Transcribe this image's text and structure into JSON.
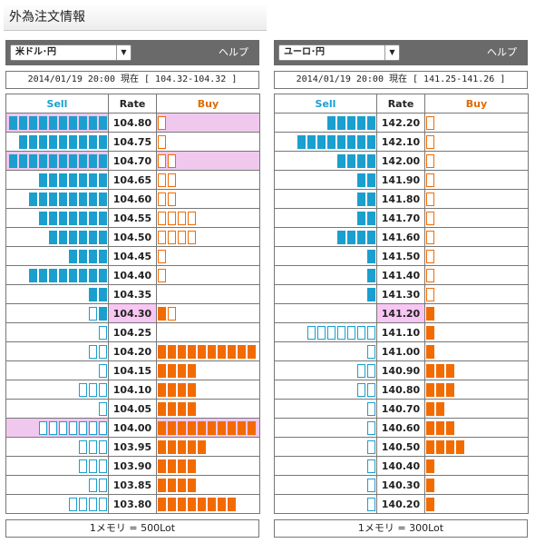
{
  "page_title": "外為注文情報",
  "colors": {
    "sell": "#1a9fcf",
    "buy": "#f26b00",
    "current_rate_bg": "#f7c6f2"
  },
  "icons": {
    "select_arrow": "chevron-down-icon"
  },
  "panels": [
    {
      "pair": "米ドル･円",
      "help": "ヘルプ",
      "info": "2014/01/19  20:00 現在 [ 104.32-104.32 ]",
      "headers": {
        "sell": "Sell",
        "rate": "Rate",
        "buy": "Buy"
      },
      "current_rate": "104.30",
      "unit_note": "1メモリ = 500Lot",
      "rows": [
        {
          "rate": "104.80",
          "sell": 10,
          "sell_style": "filled",
          "buy": 1,
          "buy_style": "outline",
          "highlight": true
        },
        {
          "rate": "104.75",
          "sell": 9,
          "sell_style": "filled",
          "buy": 1,
          "buy_style": "outline"
        },
        {
          "rate": "104.70",
          "sell": 10,
          "sell_style": "filled",
          "buy": 2,
          "buy_style": "outline",
          "highlight": true
        },
        {
          "rate": "104.65",
          "sell": 7,
          "sell_style": "filled",
          "buy": 2,
          "buy_style": "outline"
        },
        {
          "rate": "104.60",
          "sell": 8,
          "sell_style": "filled",
          "buy": 2,
          "buy_style": "outline"
        },
        {
          "rate": "104.55",
          "sell": 7,
          "sell_style": "filled",
          "buy": 4,
          "buy_style": "outline"
        },
        {
          "rate": "104.50",
          "sell": 6,
          "sell_style": "filled",
          "buy": 4,
          "buy_style": "outline"
        },
        {
          "rate": "104.45",
          "sell": 4,
          "sell_style": "filled",
          "buy": 1,
          "buy_style": "outline"
        },
        {
          "rate": "104.40",
          "sell": 8,
          "sell_style": "filled",
          "buy": 1,
          "buy_style": "outline"
        },
        {
          "rate": "104.35",
          "sell": 2,
          "sell_style": "filled",
          "buy": 0,
          "buy_style": "outline"
        },
        {
          "rate": "104.30",
          "sell": 2,
          "sell_style": "mixed",
          "buy": 2,
          "buy_style": "mixed",
          "current": true
        },
        {
          "rate": "104.25",
          "sell": 1,
          "sell_style": "outline",
          "buy": 0,
          "buy_style": "filled"
        },
        {
          "rate": "104.20",
          "sell": 2,
          "sell_style": "outline",
          "buy": 10,
          "buy_style": "filled"
        },
        {
          "rate": "104.15",
          "sell": 1,
          "sell_style": "outline",
          "buy": 4,
          "buy_style": "filled"
        },
        {
          "rate": "104.10",
          "sell": 3,
          "sell_style": "outline",
          "buy": 4,
          "buy_style": "filled"
        },
        {
          "rate": "104.05",
          "sell": 1,
          "sell_style": "outline",
          "buy": 4,
          "buy_style": "filled"
        },
        {
          "rate": "104.00",
          "sell": 7,
          "sell_style": "outline",
          "buy": 10,
          "buy_style": "filled",
          "highlight": true
        },
        {
          "rate": "103.95",
          "sell": 3,
          "sell_style": "outline",
          "buy": 5,
          "buy_style": "filled"
        },
        {
          "rate": "103.90",
          "sell": 3,
          "sell_style": "outline",
          "buy": 4,
          "buy_style": "filled"
        },
        {
          "rate": "103.85",
          "sell": 2,
          "sell_style": "outline",
          "buy": 4,
          "buy_style": "filled"
        },
        {
          "rate": "103.80",
          "sell": 4,
          "sell_style": "outline",
          "buy": 8,
          "buy_style": "filled"
        }
      ]
    },
    {
      "pair": "ユーロ･円",
      "help": "ヘルプ",
      "info": "2014/01/19  20:00 現在 [ 141.25-141.26 ]",
      "headers": {
        "sell": "Sell",
        "rate": "Rate",
        "buy": "Buy"
      },
      "current_rate": "141.20",
      "unit_note": "1メモリ = 300Lot",
      "rows": [
        {
          "rate": "142.20",
          "sell": 5,
          "sell_style": "filled",
          "buy": 1,
          "buy_style": "outline"
        },
        {
          "rate": "142.10",
          "sell": 8,
          "sell_style": "filled",
          "buy": 1,
          "buy_style": "outline"
        },
        {
          "rate": "142.00",
          "sell": 4,
          "sell_style": "filled",
          "buy": 1,
          "buy_style": "outline"
        },
        {
          "rate": "141.90",
          "sell": 2,
          "sell_style": "filled",
          "buy": 1,
          "buy_style": "outline"
        },
        {
          "rate": "141.80",
          "sell": 2,
          "sell_style": "filled",
          "buy": 1,
          "buy_style": "outline"
        },
        {
          "rate": "141.70",
          "sell": 2,
          "sell_style": "filled",
          "buy": 1,
          "buy_style": "outline"
        },
        {
          "rate": "141.60",
          "sell": 4,
          "sell_style": "filled",
          "buy": 1,
          "buy_style": "outline"
        },
        {
          "rate": "141.50",
          "sell": 1,
          "sell_style": "filled",
          "buy": 1,
          "buy_style": "outline"
        },
        {
          "rate": "141.40",
          "sell": 1,
          "sell_style": "filled",
          "buy": 1,
          "buy_style": "outline"
        },
        {
          "rate": "141.30",
          "sell": 1,
          "sell_style": "filled",
          "buy": 1,
          "buy_style": "outline"
        },
        {
          "rate": "141.20",
          "sell": 0,
          "sell_style": "filled",
          "buy": 1,
          "buy_style": "filled",
          "current": true
        },
        {
          "rate": "141.10",
          "sell": 7,
          "sell_style": "outline",
          "buy": 1,
          "buy_style": "filled"
        },
        {
          "rate": "141.00",
          "sell": 1,
          "sell_style": "outline",
          "buy": 1,
          "buy_style": "filled"
        },
        {
          "rate": "140.90",
          "sell": 2,
          "sell_style": "outline",
          "buy": 3,
          "buy_style": "filled"
        },
        {
          "rate": "140.80",
          "sell": 2,
          "sell_style": "outline",
          "buy": 3,
          "buy_style": "filled"
        },
        {
          "rate": "140.70",
          "sell": 1,
          "sell_style": "outline",
          "buy": 2,
          "buy_style": "filled"
        },
        {
          "rate": "140.60",
          "sell": 1,
          "sell_style": "outline",
          "buy": 3,
          "buy_style": "filled"
        },
        {
          "rate": "140.50",
          "sell": 1,
          "sell_style": "outline",
          "buy": 4,
          "buy_style": "filled"
        },
        {
          "rate": "140.40",
          "sell": 1,
          "sell_style": "outline",
          "buy": 1,
          "buy_style": "filled"
        },
        {
          "rate": "140.30",
          "sell": 1,
          "sell_style": "outline",
          "buy": 1,
          "buy_style": "filled"
        },
        {
          "rate": "140.20",
          "sell": 1,
          "sell_style": "outline",
          "buy": 1,
          "buy_style": "filled"
        }
      ]
    }
  ]
}
